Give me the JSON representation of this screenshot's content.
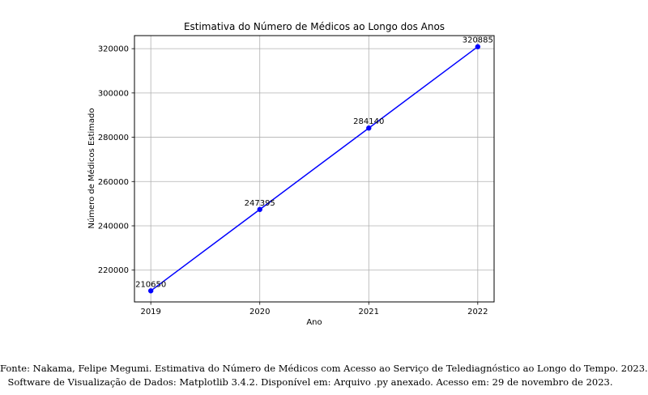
{
  "chart_data": {
    "type": "line",
    "title": "Estimativa do Número de Médicos ao Longo dos Anos",
    "xlabel": "Ano",
    "ylabel": "Número de Médicos Estimado",
    "x": [
      2019,
      2020,
      2021,
      2022
    ],
    "xticks": [
      "2019",
      "2020",
      "2021",
      "2022"
    ],
    "yticks": [
      220000,
      240000,
      260000,
      280000,
      300000,
      320000
    ],
    "xlim": [
      2018.85,
      2022.15
    ],
    "ylim": [
      205640,
      325895
    ],
    "grid": true,
    "series": [
      {
        "values": [
          210650,
          247395,
          284140,
          320885
        ],
        "labels": [
          "210650",
          "247395",
          "284140",
          "320885"
        ],
        "color": "#0000ff",
        "marker": "circle"
      }
    ]
  },
  "caption": {
    "line1": "Fonte: Nakama, Felipe Megumi. Estimativa do Número de Médicos com Acesso ao Serviço de Telediagnóstico ao Longo do Tempo. 2023.",
    "line2": "Software de Visualização de Dados: Matplotlib 3.4.2. Disponível em: Arquivo .py anexado. Acesso em: 29 de novembro de 2023."
  }
}
